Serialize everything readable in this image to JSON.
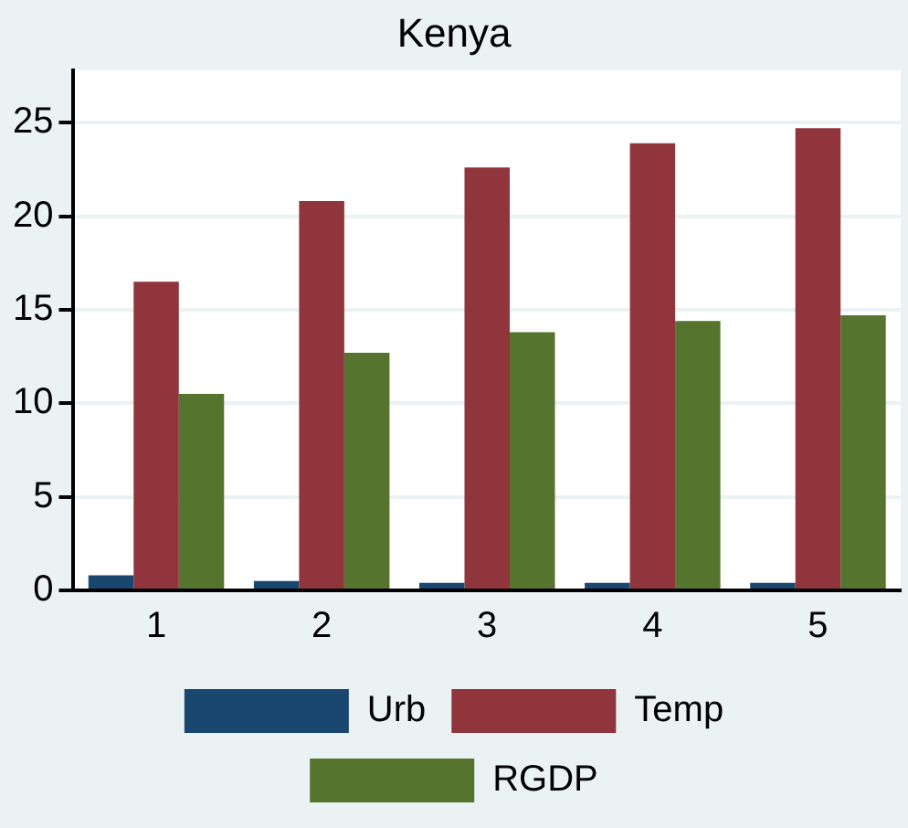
{
  "chart_data": {
    "type": "bar",
    "title": "Kenya",
    "categories": [
      "1",
      "2",
      "3",
      "4",
      "5"
    ],
    "series": [
      {
        "name": "Urb",
        "color": "#1a476f",
        "values": [
          0.8,
          0.5,
          0.4,
          0.4,
          0.4
        ]
      },
      {
        "name": "Temp",
        "color": "#90353b",
        "values": [
          16.5,
          20.8,
          22.6,
          23.9,
          24.7
        ]
      },
      {
        "name": "RGDP",
        "color": "#55752f",
        "values": [
          10.5,
          12.7,
          13.8,
          14.4,
          14.7
        ]
      }
    ],
    "ylim": [
      0,
      27.8
    ],
    "yticks": [
      0,
      5,
      10,
      15,
      20,
      25
    ],
    "grid": "y",
    "legend": "bottom"
  }
}
